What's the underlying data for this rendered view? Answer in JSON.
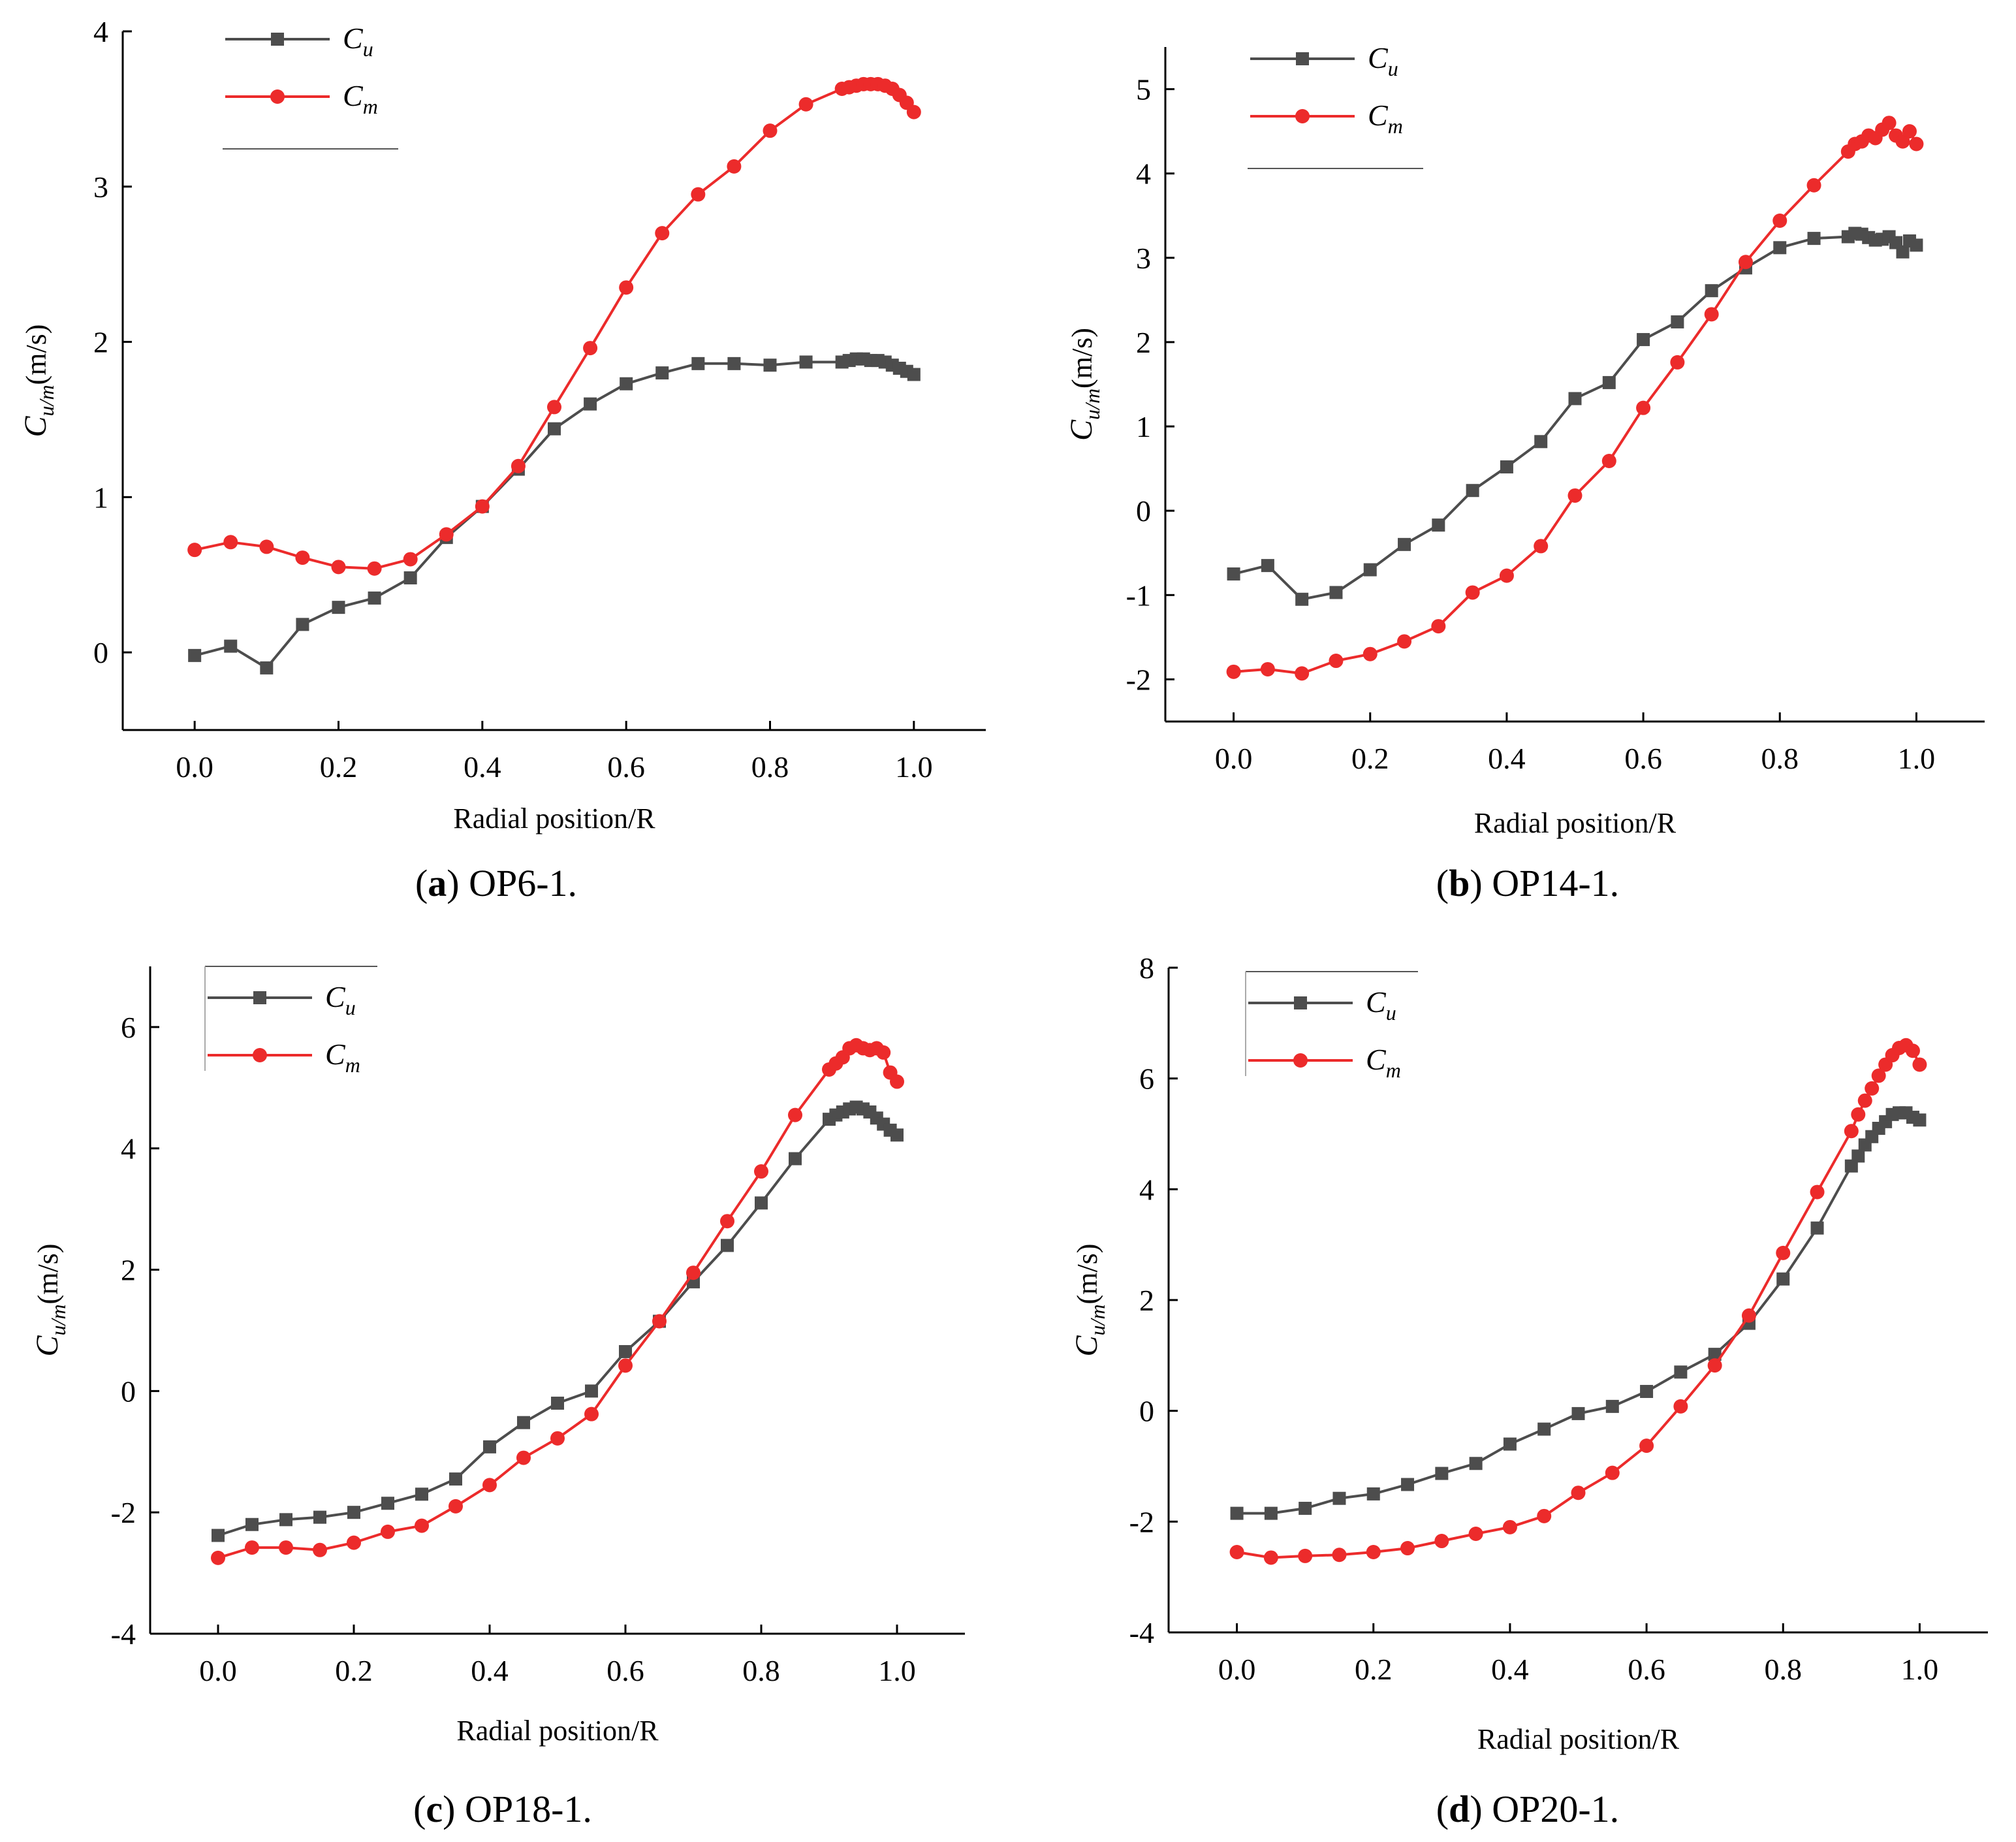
{
  "panels": [
    {
      "caption_letter": "a",
      "caption_text": "OP6-1.",
      "y_label": {
        "main": "C",
        "sub": "u/m",
        "unit": "(m/s)"
      },
      "x_label": "Radial position/R",
      "legend": [
        {
          "main": "C",
          "sub": "u"
        },
        {
          "main": "C",
          "sub": "m"
        }
      ]
    },
    {
      "caption_letter": "b",
      "caption_text": "OP14-1.",
      "y_label": {
        "main": "C",
        "sub": "u/m",
        "unit": "(m/s)"
      },
      "x_label": "Radial position/R",
      "legend": [
        {
          "main": "C",
          "sub": "u"
        },
        {
          "main": "C",
          "sub": "m"
        }
      ]
    },
    {
      "caption_letter": "c",
      "caption_text": "OP18-1.",
      "y_label": {
        "main": "C",
        "sub": "u/m",
        "unit": "(m/s)"
      },
      "x_label": "Radial position/R",
      "legend": [
        {
          "main": "C",
          "sub": "u"
        },
        {
          "main": "C",
          "sub": "m"
        }
      ]
    },
    {
      "caption_letter": "d",
      "caption_text": "OP20-1.",
      "y_label": {
        "main": "C",
        "sub": "u/m",
        "unit": "(m/s)"
      },
      "x_label": "Radial position/R",
      "legend": [
        {
          "main": "C",
          "sub": "u"
        },
        {
          "main": "C",
          "sub": "m"
        }
      ]
    }
  ],
  "chart_data": [
    {
      "type": "line",
      "title": "(a) OP6-1.",
      "xlabel": "Radial position/R",
      "ylabel": "Cu/m(m/s)",
      "xlim": [
        -0.1,
        1.1
      ],
      "ylim": [
        -0.5,
        4
      ],
      "xticks": [
        "0.0",
        "0.2",
        "0.4",
        "0.6",
        "0.8",
        "1.0"
      ],
      "xtick_values": [
        0,
        0.2,
        0.4,
        0.6,
        0.8,
        1.0
      ],
      "yticks": [
        "0",
        "1",
        "2",
        "3",
        "4"
      ],
      "ytick_values": [
        0,
        1,
        2,
        3,
        4
      ],
      "series": [
        {
          "name": "Cu",
          "color": "#4d4d4d",
          "marker": "square",
          "x": [
            0,
            0.05,
            0.1,
            0.15,
            0.2,
            0.25,
            0.3,
            0.35,
            0.4,
            0.45,
            0.5,
            0.55,
            0.6,
            0.65,
            0.7,
            0.75,
            0.8,
            0.85,
            0.9,
            0.91,
            0.92,
            0.93,
            0.94,
            0.95,
            0.96,
            0.97,
            0.98,
            0.99,
            1.0
          ],
          "y": [
            -0.02,
            0.04,
            -0.1,
            0.18,
            0.29,
            0.35,
            0.48,
            0.74,
            0.94,
            1.18,
            1.44,
            1.6,
            1.73,
            1.8,
            1.86,
            1.86,
            1.85,
            1.87,
            1.87,
            1.88,
            1.89,
            1.89,
            1.88,
            1.88,
            1.87,
            1.85,
            1.83,
            1.81,
            1.79
          ]
        },
        {
          "name": "Cm",
          "color": "#ec2b2b",
          "marker": "circle",
          "x": [
            0,
            0.05,
            0.1,
            0.15,
            0.2,
            0.25,
            0.3,
            0.35,
            0.4,
            0.45,
            0.5,
            0.55,
            0.6,
            0.65,
            0.7,
            0.75,
            0.8,
            0.85,
            0.9,
            0.91,
            0.92,
            0.93,
            0.94,
            0.95,
            0.96,
            0.97,
            0.98,
            0.99,
            1.0
          ],
          "y": [
            0.66,
            0.71,
            0.68,
            0.61,
            0.55,
            0.54,
            0.6,
            0.76,
            0.94,
            1.2,
            1.58,
            1.96,
            2.35,
            2.7,
            2.95,
            3.13,
            3.36,
            3.53,
            3.63,
            3.64,
            3.65,
            3.66,
            3.66,
            3.66,
            3.65,
            3.63,
            3.59,
            3.54,
            3.48
          ]
        }
      ]
    },
    {
      "type": "line",
      "title": "(b) OP14-1.",
      "xlabel": "Radial position/R",
      "ylabel": "Cu/m(m/s)",
      "xlim": [
        -0.1,
        1.1
      ],
      "ylim": [
        -2.5,
        5.5
      ],
      "xticks": [
        "0.0",
        "0.2",
        "0.4",
        "0.6",
        "0.8",
        "1.0"
      ],
      "xtick_values": [
        0,
        0.2,
        0.4,
        0.6,
        0.8,
        1.0
      ],
      "yticks": [
        "-2",
        "-1",
        "0",
        "1",
        "2",
        "3",
        "4",
        "5"
      ],
      "ytick_values": [
        -2,
        -1,
        0,
        1,
        2,
        3,
        4,
        5
      ],
      "series": [
        {
          "name": "Cu",
          "color": "#4d4d4d",
          "marker": "square",
          "x": [
            0,
            0.05,
            0.1,
            0.15,
            0.2,
            0.25,
            0.3,
            0.35,
            0.4,
            0.45,
            0.5,
            0.55,
            0.6,
            0.65,
            0.7,
            0.75,
            0.8,
            0.85,
            0.9,
            0.91,
            0.92,
            0.93,
            0.94,
            0.95,
            0.96,
            0.97,
            0.98,
            0.99,
            1.0
          ],
          "y": [
            -0.75,
            -0.65,
            -1.05,
            -0.97,
            -0.7,
            -0.4,
            -0.17,
            0.24,
            0.52,
            0.82,
            1.33,
            1.52,
            2.03,
            2.24,
            2.61,
            2.88,
            3.12,
            3.23,
            3.25,
            3.29,
            3.28,
            3.24,
            3.21,
            3.22,
            3.25,
            3.18,
            3.07,
            3.2,
            3.15
          ]
        },
        {
          "name": "Cm",
          "color": "#ec2b2b",
          "marker": "circle",
          "x": [
            0,
            0.05,
            0.1,
            0.15,
            0.2,
            0.25,
            0.3,
            0.35,
            0.4,
            0.45,
            0.5,
            0.55,
            0.6,
            0.65,
            0.7,
            0.75,
            0.8,
            0.85,
            0.9,
            0.91,
            0.92,
            0.93,
            0.94,
            0.95,
            0.96,
            0.97,
            0.98,
            0.99,
            1.0
          ],
          "y": [
            -1.91,
            -1.88,
            -1.93,
            -1.78,
            -1.7,
            -1.55,
            -1.37,
            -0.97,
            -0.77,
            -0.42,
            0.18,
            0.59,
            1.22,
            1.76,
            2.33,
            2.95,
            3.44,
            3.86,
            4.26,
            4.35,
            4.38,
            4.45,
            4.42,
            4.52,
            4.6,
            4.45,
            4.38,
            4.5,
            4.35
          ]
        }
      ]
    },
    {
      "type": "line",
      "title": "(c) OP18-1.",
      "xlabel": "Radial position/R",
      "ylabel": "Cu/m(m/s)",
      "xlim": [
        -0.1,
        1.1
      ],
      "ylim": [
        -4,
        7
      ],
      "xticks": [
        "0.0",
        "0.2",
        "0.4",
        "0.6",
        "0.8",
        "1.0"
      ],
      "xtick_values": [
        0,
        0.2,
        0.4,
        0.6,
        0.8,
        1.0
      ],
      "yticks": [
        "-4",
        "-2",
        "0",
        "2",
        "4",
        "6"
      ],
      "ytick_values": [
        -4,
        -2,
        0,
        2,
        4,
        6
      ],
      "series": [
        {
          "name": "Cu",
          "color": "#4d4d4d",
          "marker": "square",
          "x": [
            0,
            0.05,
            0.1,
            0.15,
            0.2,
            0.25,
            0.3,
            0.35,
            0.4,
            0.45,
            0.5,
            0.55,
            0.6,
            0.65,
            0.7,
            0.75,
            0.8,
            0.85,
            0.9,
            0.91,
            0.92,
            0.93,
            0.94,
            0.95,
            0.96,
            0.97,
            0.98,
            0.99,
            1.0
          ],
          "y": [
            -2.38,
            -2.2,
            -2.12,
            -2.08,
            -2.0,
            -1.85,
            -1.7,
            -1.45,
            -0.92,
            -0.52,
            -0.2,
            0.0,
            0.65,
            1.15,
            1.8,
            2.4,
            3.1,
            3.83,
            4.48,
            4.55,
            4.6,
            4.65,
            4.68,
            4.65,
            4.6,
            4.5,
            4.4,
            4.3,
            4.22
          ]
        },
        {
          "name": "Cm",
          "color": "#ec2b2b",
          "marker": "circle",
          "x": [
            0,
            0.05,
            0.1,
            0.15,
            0.2,
            0.25,
            0.3,
            0.35,
            0.4,
            0.45,
            0.5,
            0.55,
            0.6,
            0.65,
            0.7,
            0.75,
            0.8,
            0.85,
            0.9,
            0.91,
            0.92,
            0.93,
            0.94,
            0.95,
            0.96,
            0.97,
            0.98,
            0.99,
            1.0
          ],
          "y": [
            -2.75,
            -2.58,
            -2.58,
            -2.62,
            -2.5,
            -2.32,
            -2.22,
            -1.9,
            -1.55,
            -1.1,
            -0.78,
            -0.38,
            0.42,
            1.15,
            1.95,
            2.8,
            3.62,
            4.55,
            5.3,
            5.4,
            5.5,
            5.65,
            5.7,
            5.65,
            5.62,
            5.65,
            5.58,
            5.25,
            5.1
          ]
        }
      ]
    },
    {
      "type": "line",
      "title": "(d) OP20-1.",
      "xlabel": "Radial position/R",
      "ylabel": "Cu/m(m/s)",
      "xlim": [
        -0.1,
        1.1
      ],
      "ylim": [
        -4,
        8
      ],
      "xticks": [
        "0.0",
        "0.2",
        "0.4",
        "0.6",
        "0.8",
        "1.0"
      ],
      "xtick_values": [
        0,
        0.2,
        0.4,
        0.6,
        0.8,
        1.0
      ],
      "yticks": [
        "-4",
        "-2",
        "0",
        "2",
        "4",
        "6",
        "8"
      ],
      "ytick_values": [
        -4,
        -2,
        0,
        2,
        4,
        6,
        8
      ],
      "series": [
        {
          "name": "Cu",
          "color": "#4d4d4d",
          "marker": "square",
          "x": [
            0,
            0.05,
            0.1,
            0.15,
            0.2,
            0.25,
            0.3,
            0.35,
            0.4,
            0.45,
            0.5,
            0.55,
            0.6,
            0.65,
            0.7,
            0.75,
            0.8,
            0.85,
            0.9,
            0.91,
            0.92,
            0.93,
            0.94,
            0.95,
            0.96,
            0.97,
            0.98,
            0.99,
            1.0
          ],
          "y": [
            -1.85,
            -1.85,
            -1.76,
            -1.58,
            -1.5,
            -1.33,
            -1.13,
            -0.95,
            -0.6,
            -0.33,
            -0.05,
            0.08,
            0.35,
            0.7,
            1.02,
            1.58,
            2.38,
            3.3,
            4.42,
            4.6,
            4.8,
            4.95,
            5.1,
            5.22,
            5.35,
            5.38,
            5.38,
            5.3,
            5.25
          ]
        },
        {
          "name": "Cm",
          "color": "#ec2b2b",
          "marker": "circle",
          "x": [
            0,
            0.05,
            0.1,
            0.15,
            0.2,
            0.25,
            0.3,
            0.35,
            0.4,
            0.45,
            0.5,
            0.55,
            0.6,
            0.65,
            0.7,
            0.75,
            0.8,
            0.85,
            0.9,
            0.91,
            0.92,
            0.93,
            0.94,
            0.95,
            0.96,
            0.97,
            0.98,
            0.99,
            1.0
          ],
          "y": [
            -2.55,
            -2.65,
            -2.62,
            -2.6,
            -2.55,
            -2.48,
            -2.35,
            -2.22,
            -2.1,
            -1.9,
            -1.48,
            -1.12,
            -0.63,
            0.08,
            0.82,
            1.72,
            2.85,
            3.95,
            5.05,
            5.35,
            5.6,
            5.82,
            6.05,
            6.25,
            6.42,
            6.55,
            6.6,
            6.5,
            6.25
          ]
        }
      ]
    }
  ]
}
